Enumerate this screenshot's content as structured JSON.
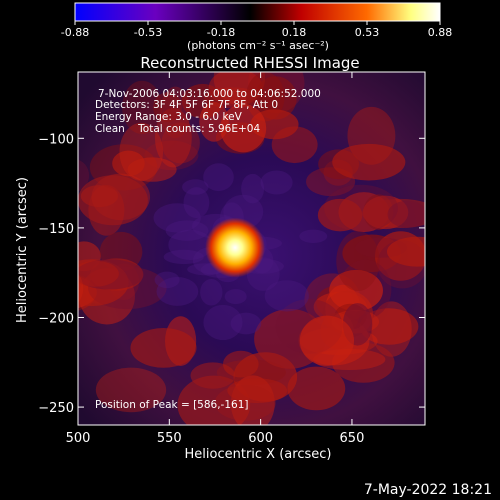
{
  "chart_data": {
    "type": "heatmap",
    "title": "Reconstructed RHESSI Image",
    "xlabel": "Heliocentric X (arcsec)",
    "ylabel": "Heliocentric Y (arcsec)",
    "xlim": [
      500,
      690
    ],
    "ylim": [
      -260,
      -63
    ],
    "x_ticks": [
      500,
      550,
      600,
      650
    ],
    "y_ticks": [
      -100,
      -150,
      -200,
      -250
    ],
    "colorbar": {
      "ticks": [
        "-0.88",
        "-0.53",
        "-0.18",
        "0.18",
        "0.53",
        "0.88"
      ],
      "min": -0.88,
      "max": 0.88,
      "unit_label": "(photons cm⁻² s⁻¹ asec⁻²)",
      "colors": [
        "#0000ff",
        "#6a00c0",
        "#000000",
        "#c00000",
        "#ff6a00",
        "#ffff80",
        "#ffffff"
      ]
    },
    "annotations": [
      "7-Nov-2006 04:03:16.000 to 04:06:52.000",
      "Detectors: 3F 4F 5F 6F 7F 8F, Att 0",
      "Energy Range: 3.0 - 6.0 keV",
      "Clean    Total counts: 5.96E+04"
    ],
    "peak_label": "Position of Peak = [586,-161]",
    "peak_position": [
      586,
      -161
    ],
    "timestamp": "7-May-2022 18:21"
  }
}
